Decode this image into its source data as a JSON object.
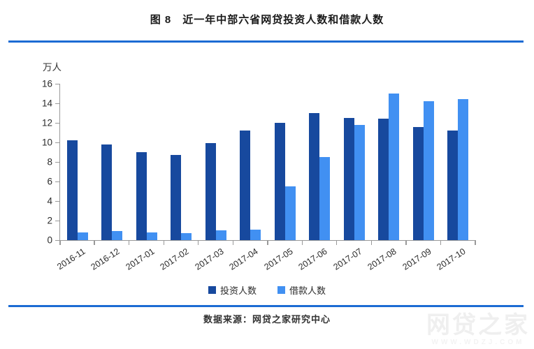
{
  "header": {
    "title": "图 8　近一年中部六省网贷投资人数和借款人数"
  },
  "chart_data": {
    "type": "bar",
    "title": "图 8　近一年中部六省网贷投资人数和借款人数",
    "unit_label": "万人",
    "categories": [
      "2016-11",
      "2016-12",
      "2017-01",
      "2017-02",
      "2017-03",
      "2017-04",
      "2017-05",
      "2017-06",
      "2017-07",
      "2017-08",
      "2017-09",
      "2017-10"
    ],
    "series": [
      {
        "name": "投资人数",
        "color": "#17499E",
        "values": [
          10.2,
          9.8,
          9.0,
          8.7,
          9.9,
          11.2,
          12.0,
          13.0,
          12.5,
          12.4,
          11.6,
          11.2
        ]
      },
      {
        "name": "借款人数",
        "color": "#4190F2",
        "values": [
          0.8,
          0.9,
          0.8,
          0.7,
          1.0,
          1.1,
          5.5,
          8.5,
          11.8,
          15.0,
          14.2,
          14.4
        ]
      }
    ],
    "ylim": [
      0,
      16
    ],
    "ytick_step": 2,
    "grid": false,
    "legend_position": "bottom"
  },
  "footer": {
    "source_label": "数据来源：网贷之家研究中心"
  },
  "watermark": {
    "brand": "网贷之家",
    "url": "WWW.WDZJ.COM"
  },
  "colors": {
    "divider": "#1C6BD3",
    "bar_invest": "#17499E",
    "bar_borrow": "#4190F2",
    "axis": "#999999",
    "text": "#2B2B2B",
    "watermark": "#EFEFEF"
  }
}
